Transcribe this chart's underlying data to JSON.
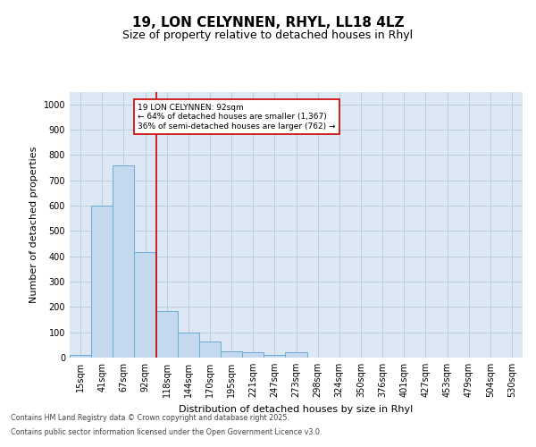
{
  "title_line1": "19, LON CELYNNEN, RHYL, LL18 4LZ",
  "title_line2": "Size of property relative to detached houses in Rhyl",
  "xlabel": "Distribution of detached houses by size in Rhyl",
  "ylabel": "Number of detached properties",
  "categories": [
    "15sqm",
    "41sqm",
    "67sqm",
    "92sqm",
    "118sqm",
    "144sqm",
    "170sqm",
    "195sqm",
    "221sqm",
    "247sqm",
    "273sqm",
    "298sqm",
    "324sqm",
    "350sqm",
    "376sqm",
    "401sqm",
    "427sqm",
    "453sqm",
    "479sqm",
    "504sqm",
    "530sqm"
  ],
  "values": [
    10,
    600,
    760,
    415,
    185,
    100,
    65,
    25,
    20,
    10,
    20,
    0,
    0,
    0,
    0,
    0,
    0,
    0,
    0,
    0,
    0
  ],
  "bar_color": "#c5d9ee",
  "bar_edge_color": "#6aaad4",
  "background_color": "#dce9f5",
  "vline_x_index": 3,
  "vline_color": "#cc0000",
  "annotation_text": "19 LON CELYNNEN: 92sqm\n← 64% of detached houses are smaller (1,367)\n36% of semi-detached houses are larger (762) →",
  "annotation_box_color": "#ffffff",
  "annotation_box_edge": "#cc0000",
  "ylim": [
    0,
    1050
  ],
  "yticks": [
    0,
    100,
    200,
    300,
    400,
    500,
    600,
    700,
    800,
    900,
    1000
  ],
  "footer_line1": "Contains HM Land Registry data © Crown copyright and database right 2025.",
  "footer_line2": "Contains public sector information licensed under the Open Government Licence v3.0.",
  "title_fontsize": 11,
  "subtitle_fontsize": 9,
  "tick_fontsize": 7,
  "label_fontsize": 8,
  "annotation_fontsize": 6.5,
  "footer_fontsize": 5.8
}
